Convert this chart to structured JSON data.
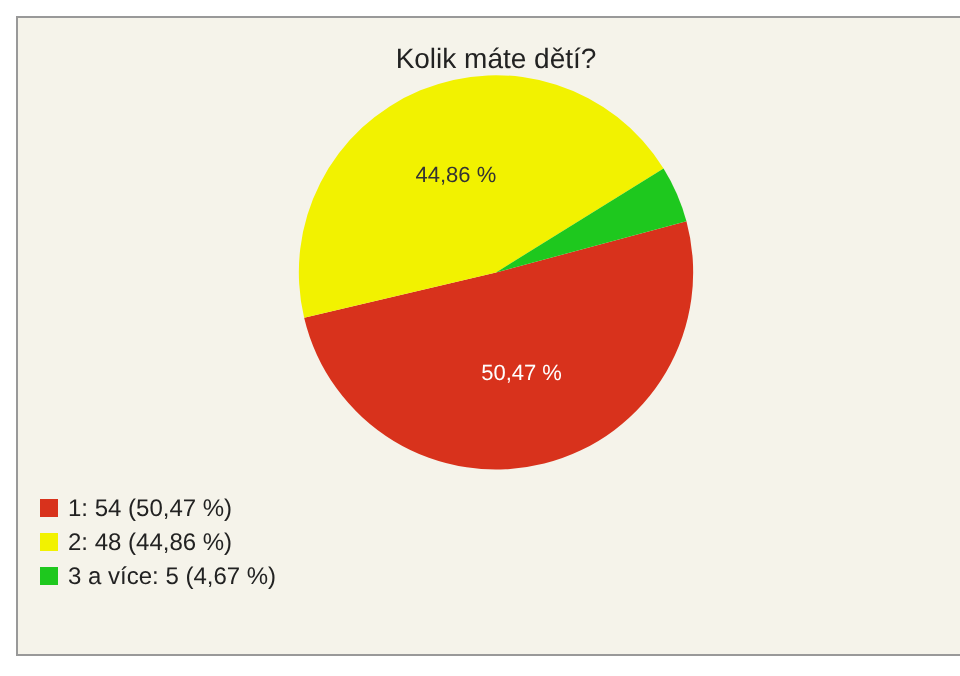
{
  "chart_data": {
    "type": "pie",
    "title": "Kolik máte dětí?",
    "categories": [
      "1: 54 (50,47 %)",
      "2: 48 (44,86 %)",
      "3 a více: 5 (4,67 %)"
    ],
    "values": [
      50.47,
      44.86,
      4.67
    ],
    "colors": [
      "#d8321c",
      "#f2f200",
      "#1ec81e"
    ],
    "value_labels": [
      "50,47 %",
      "44,86 %",
      null
    ],
    "legend": "bottom left"
  }
}
